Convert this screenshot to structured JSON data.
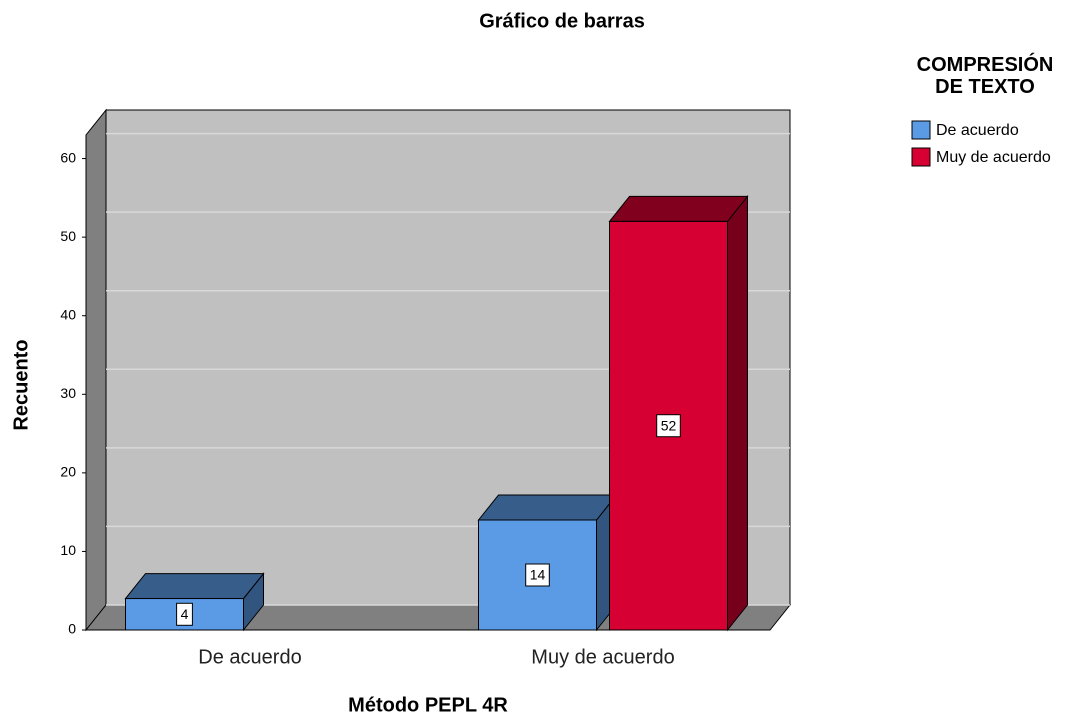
{
  "chart_data": {
    "type": "bar3d",
    "title": "Gráfico de barras",
    "x_label": "Método PEPL 4R",
    "y_label": "Recuento",
    "legend_title": "COMPRESIÓN DE TEXTO",
    "categories": [
      "De acuerdo",
      "Muy de acuerdo"
    ],
    "series": [
      {
        "name": "De acuerdo",
        "color": "#5b9be6",
        "values": [
          4,
          14
        ]
      },
      {
        "name": "Muy de acuerdo",
        "color": "#d60032",
        "values": [
          null,
          52
        ]
      }
    ],
    "ylim": [
      0,
      63
    ],
    "yticks": [
      0,
      10,
      20,
      30,
      40,
      50,
      60
    ],
    "grid": true
  }
}
